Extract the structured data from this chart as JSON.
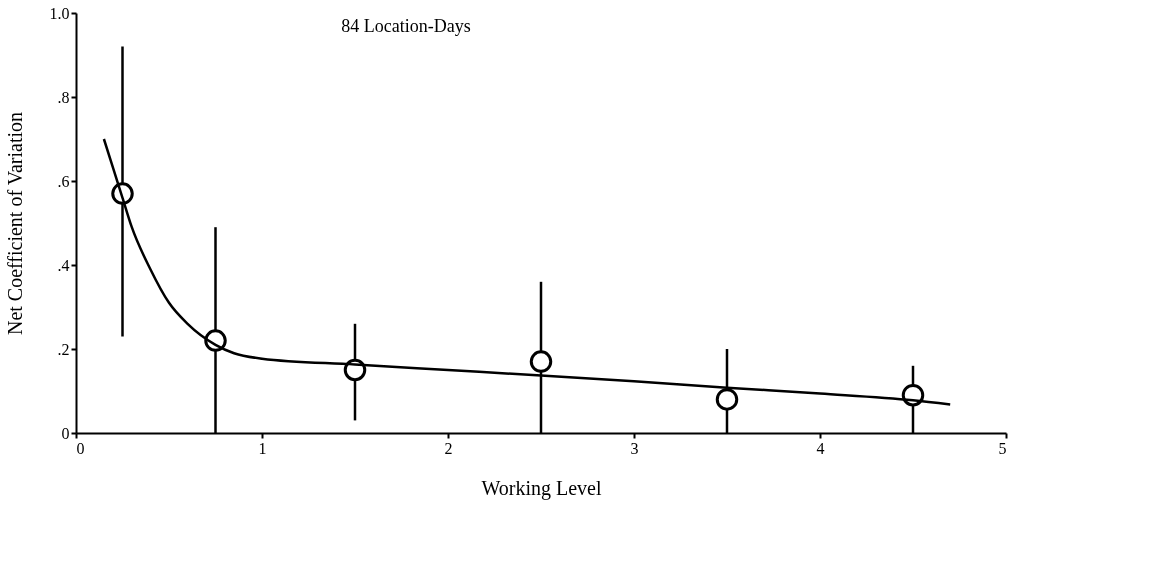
{
  "chart_data": {
    "type": "scatter",
    "xlabel": "Working Level",
    "ylabel": "Net Coefficient of Variation",
    "annotations": [
      "84 Location-Days"
    ],
    "xlim": [
      0,
      5
    ],
    "xticks": [
      0,
      1,
      2,
      3,
      4,
      5
    ],
    "ylim": [
      0,
      1.0
    ],
    "yticks": [
      0,
      {
        "value": 0.2,
        "label": ".2"
      },
      {
        "value": 0.4,
        "label": ".4"
      },
      {
        "value": 0.6,
        "label": ".6"
      },
      {
        "value": 0.8,
        "label": ".8"
      },
      {
        "value": 1.0,
        "label": "1.0"
      }
    ],
    "marker": "circle",
    "series": [
      {
        "color": "#000000",
        "x": [
          0.25,
          0.75,
          1.5,
          2.5,
          3.5,
          4.5
        ],
        "values": [
          0.57,
          0.22,
          0.15,
          0.17,
          0.08,
          0.09
        ],
        "errors": [
          [
            0.23,
            0.92
          ],
          [
            0,
            0.49
          ],
          [
            0.03,
            0.26
          ],
          [
            0,
            0.36
          ],
          [
            0,
            0.2
          ],
          [
            0,
            0.16
          ]
        ]
      },
      {
        "type": "line",
        "color": "#000000",
        "line_style": "solid",
        "marker": "none",
        "x": [
          0.15,
          0.2,
          0.25,
          0.3,
          0.4,
          0.5,
          0.6,
          0.75,
          0.85,
          1.0,
          1.5,
          2.0,
          2.5,
          3.0,
          3.5,
          4.0,
          4.5,
          4.7
        ],
        "values": [
          0.7,
          0.63,
          0.56,
          0.49,
          0.39,
          0.31,
          0.26,
          0.21,
          0.19,
          0.177,
          0.163,
          0.15,
          0.137,
          0.123,
          0.108,
          0.094,
          0.078,
          0.068
        ]
      }
    ]
  }
}
